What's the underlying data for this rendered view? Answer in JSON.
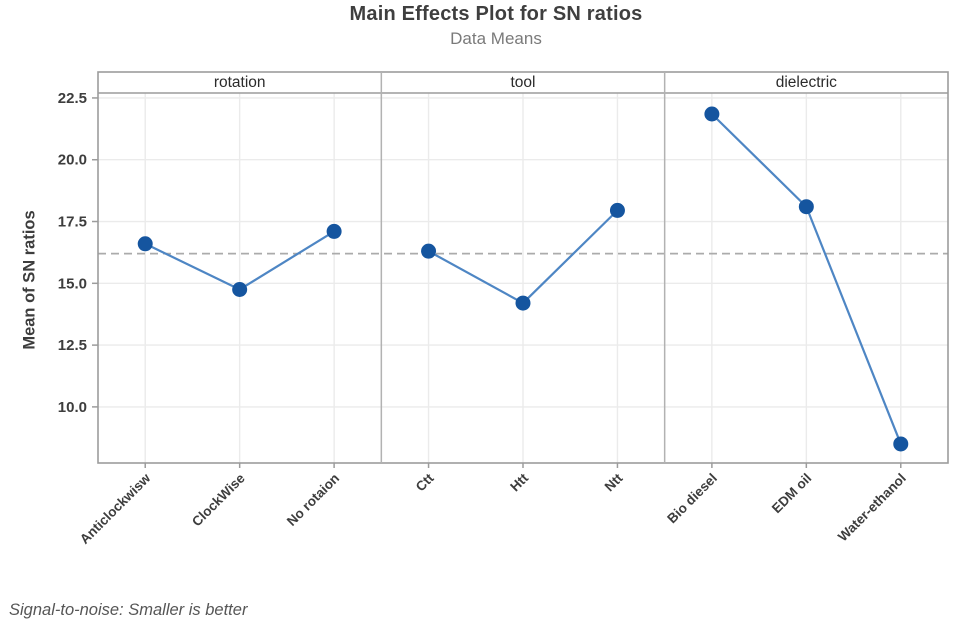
{
  "chart_data": {
    "type": "line",
    "title": "Main Effects Plot for SN ratios",
    "subtitle": "Data Means",
    "ylabel": "Mean of SN ratios",
    "footnote": "Signal-to-noise: Smaller is better",
    "ytick_labels": [
      "22.5",
      "20.0",
      "17.5",
      "15.0",
      "12.5",
      "10.0"
    ],
    "ylim": [
      7.73,
      22.7
    ],
    "grid": true,
    "legend_position": "none",
    "reference_line": 16.2,
    "panels": [
      {
        "label": "rotation",
        "categories": [
          "Anticlockwisw",
          "ClockWise",
          "No rotaion"
        ],
        "values": [
          16.6,
          14.75,
          17.1
        ]
      },
      {
        "label": "tool",
        "categories": [
          "Ctt",
          "Htt",
          "Ntt"
        ],
        "values": [
          16.3,
          14.2,
          17.95
        ]
      },
      {
        "label": "dielectric",
        "categories": [
          "Bio diesel",
          "EDM oil",
          "Water-ethanol"
        ],
        "values": [
          21.85,
          18.1,
          8.5
        ]
      }
    ],
    "colors": {
      "marker": "#15559f",
      "line": "#4e86c4",
      "grid": "#ebebeb",
      "reference": "#ababab",
      "border": "#9c9c9c",
      "separator": "#b2b2b2",
      "tick_text": "#3d3d3d",
      "header_text": "#2b2b2b",
      "subtitle_text": "#7a7a7a",
      "footnote_text": "#565656"
    }
  }
}
